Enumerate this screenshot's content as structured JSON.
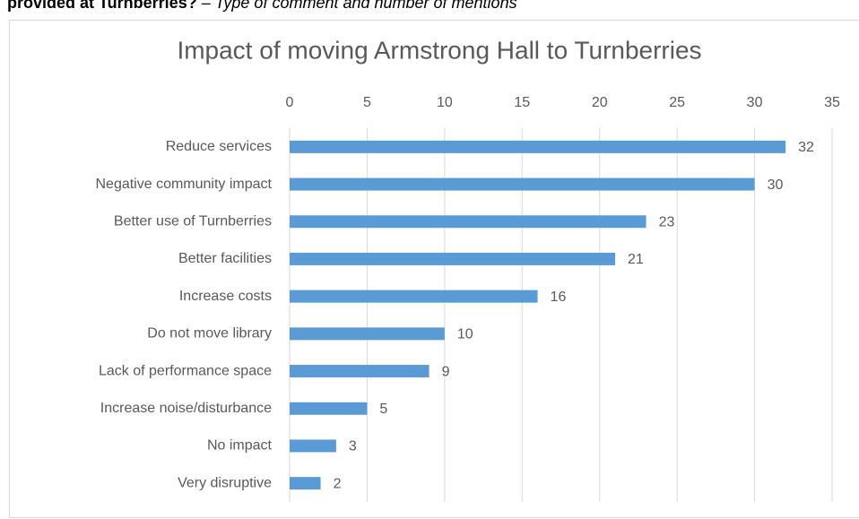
{
  "caption": {
    "bold": "provided at Turnberries?",
    "dash": "–",
    "italic": "Type of comment and number of mentions"
  },
  "chart_data": {
    "type": "bar",
    "orientation": "horizontal",
    "title": "Impact of moving Armstrong Hall to Turnberries",
    "categories": [
      "Reduce services",
      "Negative community impact",
      "Better use of Turnberries",
      "Better facilities",
      "Increase costs",
      "Do not move library",
      "Lack of performance space",
      "Increase noise/disturbance",
      "No impact",
      "Very disruptive"
    ],
    "values": [
      32,
      30,
      23,
      21,
      16,
      10,
      9,
      5,
      3,
      2
    ],
    "color": "#5b9bd5",
    "xlim": [
      0,
      35
    ],
    "xticks": [
      0,
      5,
      10,
      15,
      20,
      25,
      30,
      35
    ],
    "grid": true
  }
}
